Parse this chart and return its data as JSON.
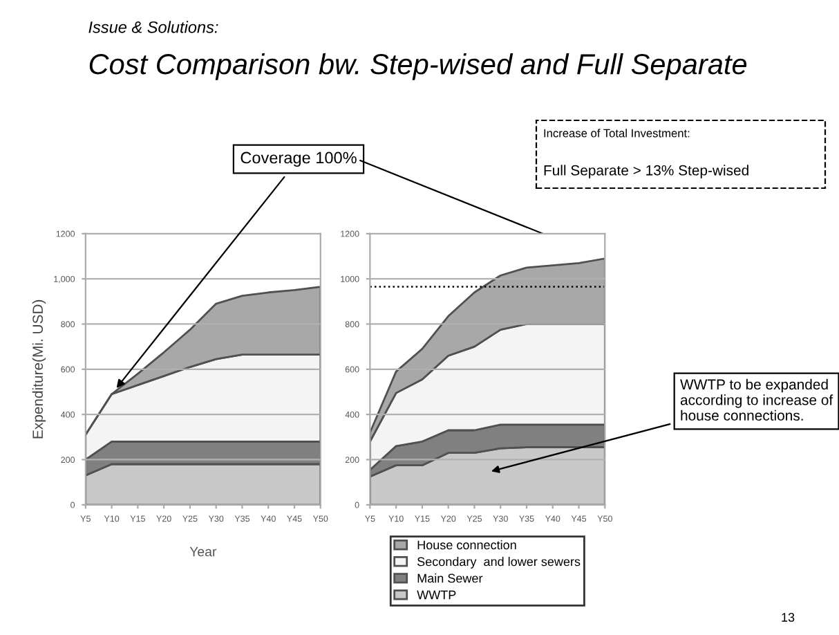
{
  "chart_data": [
    {
      "type": "area",
      "title": "Cost Comparison bw. Step-wised and Full Separate",
      "subtitle": "Issue & Solutions:",
      "stacked": true,
      "xlabel": "Year",
      "ylabel": "Expenditure(Mi. USD)",
      "categories": [
        "Y5",
        "Y10",
        "Y15",
        "Y20",
        "Y25",
        "Y30",
        "Y35",
        "Y40",
        "Y45",
        "Y50"
      ],
      "series": [
        {
          "color": "#c8c8c8",
          "values": [
            130,
            180,
            180,
            180,
            180,
            180,
            180,
            180,
            180,
            180
          ]
        },
        {
          "color": "#808080",
          "values": [
            70,
            100,
            100,
            100,
            100,
            100,
            100,
            100,
            100,
            100
          ]
        },
        {
          "color": "#f4f4f4",
          "values": [
            110,
            210,
            250,
            290,
            330,
            365,
            385,
            385,
            385,
            385
          ]
        },
        {
          "color": "#a8a8a8",
          "values": [
            0,
            0,
            50,
            105,
            165,
            245,
            260,
            275,
            285,
            300
          ]
        }
      ],
      "ylim": [
        0,
        1200
      ],
      "yticks": [
        0,
        200,
        400,
        600,
        800,
        {
          "value": 1000,
          "label": "1,000"
        },
        1200
      ],
      "grid": "y",
      "annotations": [
        {
          "text": "Coverage 100%",
          "x": "Y10",
          "y": 490
        }
      ]
    },
    {
      "type": "area",
      "stacked": true,
      "categories": [
        "Y5",
        "Y10",
        "Y15",
        "Y20",
        "Y25",
        "Y30",
        "Y35",
        "Y40",
        "Y45",
        "Y50"
      ],
      "series": [
        {
          "name": "WWTP",
          "color": "#c8c8c8",
          "values": [
            125,
            175,
            175,
            230,
            230,
            250,
            255,
            255,
            255,
            255
          ]
        },
        {
          "name": "Main Sewer",
          "color": "#808080",
          "values": [
            30,
            85,
            105,
            100,
            100,
            105,
            100,
            100,
            100,
            100
          ]
        },
        {
          "name": "Secondary  and lower sewers",
          "color": "#f4f4f4",
          "values": [
            125,
            235,
            275,
            330,
            370,
            420,
            445,
            445,
            445,
            445
          ]
        },
        {
          "name": "House connection",
          "color": "#a8a8a8",
          "values": [
            40,
            95,
            135,
            175,
            240,
            240,
            250,
            260,
            270,
            290
          ]
        }
      ],
      "ylim": [
        0,
        1200
      ],
      "yticks": [
        0,
        200,
        400,
        600,
        800,
        1000,
        1200
      ],
      "grid": "y",
      "legend": "bottom",
      "ref_lines": [
        {
          "axis": "y",
          "value": 965,
          "color": "#000000",
          "line_style": "dotted"
        }
      ],
      "annotations": [
        "Increase of Total Investment:",
        "Full Separate > 13% Step-wised",
        "WWTP to be expanded according to increase of house connections.",
        "13"
      ]
    }
  ]
}
